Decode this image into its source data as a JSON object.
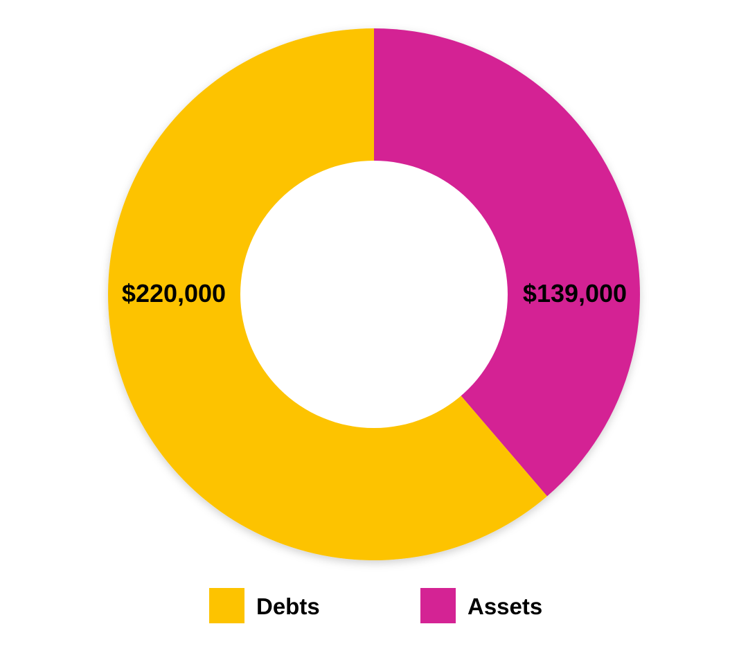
{
  "chart_data": {
    "type": "pie",
    "variant": "donut",
    "title": "",
    "categories": [
      "Assets",
      "Debts"
    ],
    "values": [
      139000,
      220000
    ],
    "labels": [
      "$139,000",
      "$220,000"
    ],
    "colors": [
      "#d42394",
      "#fdc300"
    ],
    "legend": {
      "placement": "bottom",
      "entries": [
        {
          "label": "Debts",
          "color": "#fdc300"
        },
        {
          "label": "Assets",
          "color": "#d42394"
        }
      ]
    }
  }
}
